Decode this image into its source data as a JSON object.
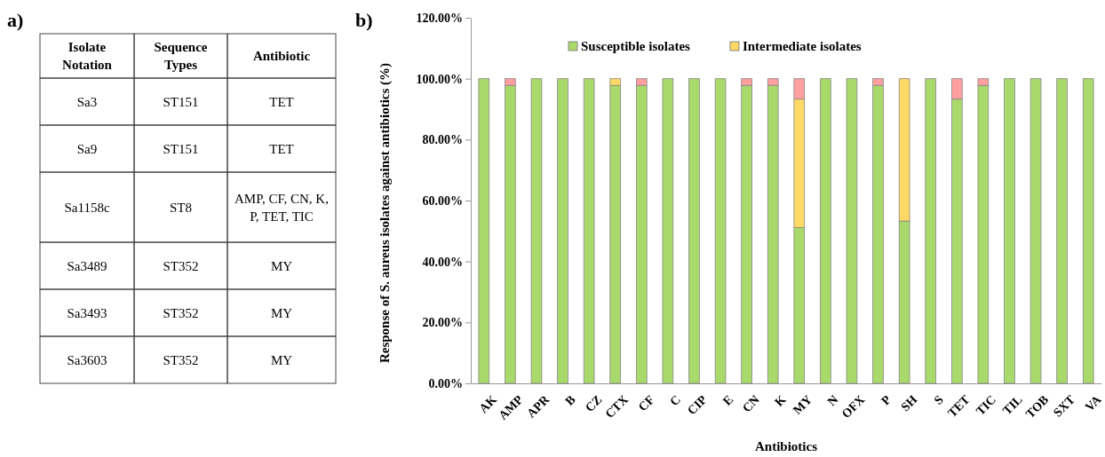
{
  "chart_data": [
    {
      "type": "other",
      "title": "a)",
      "annotations": [
        "Isolate Notation",
        "Sequence Types",
        "Antibiotic",
        "Sa3",
        "ST151",
        "TET",
        "Sa9",
        "ST151",
        "TET",
        "Sa1158c",
        "ST8",
        "AMP, CF, CN, K, P, TET, TIC",
        "Sa3489",
        "ST352",
        "MY",
        "Sa3493",
        "ST352",
        "MY",
        "Sa3603",
        "ST352",
        "MY"
      ]
    },
    {
      "type": "bar",
      "title": "b)",
      "stacked": true,
      "legend": "top",
      "xlabel": "Antibiotics",
      "ylabel": "Response of S. aureus isolates against antibiotics (%)",
      "categories": [
        "AK",
        "AMP",
        "APR",
        "B",
        "CZ",
        "CTX",
        "CF",
        "C",
        "CIP",
        "E",
        "CN",
        "K",
        "MY",
        "N",
        "OFX",
        "P",
        "SH",
        "S",
        "TET",
        "TIC",
        "TIL",
        "TOB",
        "SXT",
        "VA"
      ],
      "ylim": [
        0,
        120
      ],
      "yticks": [
        {
          "value": 0,
          "label": "0.00%"
        },
        {
          "value": 20,
          "label": "20.00%"
        },
        {
          "value": 40,
          "label": "40.00%"
        },
        {
          "value": 60,
          "label": "60.00%"
        },
        {
          "value": 80,
          "label": "80.00%"
        },
        {
          "value": 100,
          "label": "100.00%"
        },
        {
          "value": 120,
          "label": "120.00%"
        }
      ],
      "series": [
        {
          "name": "Susceptible isolates",
          "color": "#a9d96b",
          "values": [
            100,
            97.8,
            100,
            100,
            100,
            97.8,
            97.8,
            100,
            100,
            100,
            97.8,
            97.8,
            51.1,
            100,
            100,
            97.8,
            53.3,
            100,
            93.3,
            97.8,
            100,
            100,
            100,
            100
          ]
        },
        {
          "name": "Intermediate isolates",
          "color": "#ffd966",
          "values": [
            0,
            0,
            0,
            0,
            0,
            2.2,
            0,
            0,
            0,
            0,
            0,
            0,
            42.2,
            0,
            0,
            0,
            46.7,
            0,
            0,
            0,
            0,
            0,
            0,
            0
          ]
        },
        {
          "color": "#ff9f9f",
          "values": [
            0,
            2.2,
            0,
            0,
            0,
            0,
            2.2,
            0,
            0,
            0,
            2.2,
            2.2,
            6.7,
            0,
            0,
            2.2,
            0,
            0,
            6.7,
            2.2,
            0,
            0,
            0,
            0
          ]
        }
      ]
    }
  ]
}
